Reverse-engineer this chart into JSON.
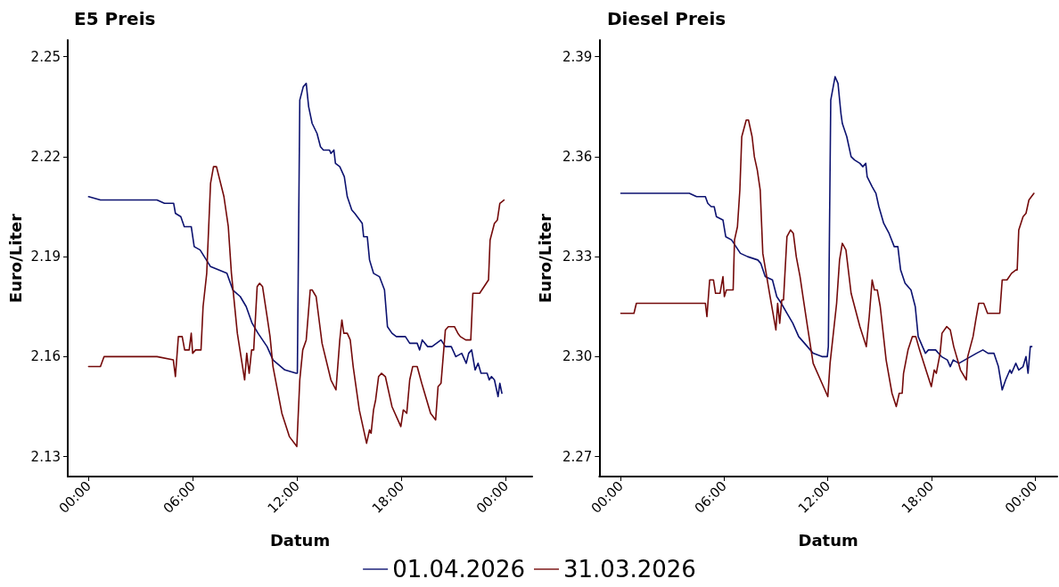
{
  "chart_data": [
    {
      "type": "line",
      "title": "E5 Preis",
      "xlabel": "Datum",
      "ylabel": "Euro/Liter",
      "xlim": [
        -1.2,
        25.5
      ],
      "ylim": [
        2.124,
        2.255
      ],
      "xticks": [
        {
          "value": 0,
          "label": "00:00"
        },
        {
          "value": 6,
          "label": "06:00"
        },
        {
          "value": 12,
          "label": "12:00"
        },
        {
          "value": 18,
          "label": "18:00"
        },
        {
          "value": 24,
          "label": "00:00"
        }
      ],
      "yticks": [
        2.13,
        2.16,
        2.19,
        2.22,
        2.25
      ],
      "grid": false,
      "legend": "bottom",
      "marker": "none",
      "line_style": "solid",
      "series": [
        {
          "name": "01.04.2026",
          "color": "#0c1270",
          "x": [
            0,
            0.68,
            3.93,
            4.36,
            4.89,
            4.99,
            5.3,
            5.5,
            5.9,
            6.07,
            6.41,
            7.01,
            7.95,
            8.29,
            8.72,
            9.06,
            9.4,
            9.74,
            10.26,
            10.6,
            11.28,
            11.93,
            12.0,
            12.14,
            12.34,
            12.51,
            12.65,
            12.85,
            13.13,
            13.33,
            13.5,
            13.85,
            13.93,
            14.1,
            14.19,
            14.44,
            14.7,
            14.87,
            15.13,
            15.3,
            15.73,
            15.81,
            16.02,
            16.15,
            16.38,
            16.72,
            17.01,
            17.18,
            17.44,
            17.69,
            18.21,
            18.46,
            18.89,
            19.03,
            19.18,
            19.49,
            19.74,
            20.26,
            20.51,
            20.85,
            21.11,
            21.45,
            21.71,
            21.85,
            22.02,
            22.22,
            22.39,
            22.56,
            22.91,
            23.03,
            23.16,
            23.33,
            23.54,
            23.64,
            23.76
          ],
          "values": [
            2.208,
            2.207,
            2.207,
            2.206,
            2.206,
            2.203,
            2.202,
            2.199,
            2.199,
            2.193,
            2.192,
            2.187,
            2.185,
            2.18,
            2.178,
            2.175,
            2.17,
            2.167,
            2.163,
            2.159,
            2.156,
            2.155,
            2.155,
            2.237,
            2.241,
            2.242,
            2.235,
            2.23,
            2.227,
            2.223,
            2.222,
            2.222,
            2.221,
            2.222,
            2.218,
            2.217,
            2.214,
            2.208,
            2.204,
            2.203,
            2.2,
            2.196,
            2.196,
            2.189,
            2.185,
            2.184,
            2.18,
            2.169,
            2.167,
            2.166,
            2.166,
            2.164,
            2.164,
            2.162,
            2.165,
            2.163,
            2.163,
            2.165,
            2.163,
            2.163,
            2.16,
            2.161,
            2.158,
            2.161,
            2.162,
            2.156,
            2.158,
            2.155,
            2.155,
            2.153,
            2.154,
            2.153,
            2.148,
            2.152,
            2.149
          ]
        },
        {
          "name": "31.03.2026",
          "color": "#740a0a",
          "x": [
            0,
            0.68,
            0.89,
            3.93,
            4.87,
            4.99,
            5.16,
            5.38,
            5.52,
            5.78,
            5.9,
            5.98,
            6.15,
            6.46,
            6.58,
            6.79,
            7.01,
            7.18,
            7.35,
            7.78,
            8.03,
            8.21,
            8.55,
            8.97,
            9.09,
            9.23,
            9.37,
            9.49,
            9.69,
            9.83,
            10.0,
            10.26,
            10.43,
            10.6,
            11.11,
            11.54,
            11.97,
            12.14,
            12.31,
            12.51,
            12.74,
            12.85,
            13.08,
            13.42,
            13.93,
            14.22,
            14.44,
            14.56,
            14.67,
            14.87,
            15.04,
            15.21,
            15.56,
            15.98,
            16.15,
            16.24,
            16.38,
            16.5,
            16.67,
            16.84,
            17.06,
            17.44,
            17.95,
            18.09,
            18.29,
            18.46,
            18.63,
            18.89,
            19.15,
            19.66,
            19.95,
            20.09,
            20.26,
            20.51,
            20.68,
            21.03,
            21.23,
            21.37,
            21.68,
            21.97,
            22.09,
            22.26,
            22.48,
            22.99,
            23.08,
            23.33,
            23.5,
            23.64,
            23.88
          ],
          "values": [
            2.157,
            2.157,
            2.16,
            2.16,
            2.159,
            2.154,
            2.166,
            2.166,
            2.162,
            2.162,
            2.167,
            2.161,
            2.162,
            2.162,
            2.175,
            2.185,
            2.212,
            2.217,
            2.217,
            2.208,
            2.199,
            2.185,
            2.167,
            2.153,
            2.161,
            2.155,
            2.162,
            2.162,
            2.181,
            2.182,
            2.181,
            2.172,
            2.166,
            2.157,
            2.143,
            2.136,
            2.133,
            2.153,
            2.162,
            2.165,
            2.18,
            2.18,
            2.178,
            2.164,
            2.153,
            2.15,
            2.165,
            2.171,
            2.167,
            2.167,
            2.165,
            2.157,
            2.144,
            2.134,
            2.138,
            2.137,
            2.144,
            2.147,
            2.154,
            2.155,
            2.154,
            2.145,
            2.139,
            2.144,
            2.143,
            2.153,
            2.157,
            2.157,
            2.152,
            2.143,
            2.141,
            2.151,
            2.152,
            2.168,
            2.169,
            2.169,
            2.167,
            2.166,
            2.165,
            2.165,
            2.179,
            2.179,
            2.179,
            2.183,
            2.195,
            2.2,
            2.201,
            2.206,
            2.207
          ]
        }
      ]
    },
    {
      "type": "line",
      "title": "Diesel Preis",
      "xlabel": "Datum",
      "ylabel": "Euro/Liter",
      "xlim": [
        -1.25,
        25.3
      ],
      "ylim": [
        2.264,
        2.395
      ],
      "xticks": [
        {
          "value": 0,
          "label": "00:00"
        },
        {
          "value": 6,
          "label": "06:00"
        },
        {
          "value": 12,
          "label": "12:00"
        },
        {
          "value": 18,
          "label": "18:00"
        },
        {
          "value": 24,
          "label": "00:00"
        }
      ],
      "yticks": [
        2.27,
        {
          "value": 2.3,
          "label": "2.30"
        },
        2.33,
        2.36,
        2.39
      ],
      "grid": false,
      "marker": "none",
      "line_style": "solid",
      "series": [
        {
          "name": "01.04.2026",
          "color": "#0c1270",
          "x": [
            0,
            0.34,
            1.01,
            3.97,
            4.39,
            4.9,
            5.04,
            5.24,
            5.41,
            5.54,
            5.92,
            6.08,
            6.42,
            6.93,
            7.35,
            7.94,
            8.11,
            8.37,
            8.79,
            9.04,
            9.3,
            9.63,
            9.97,
            10.31,
            10.65,
            11.15,
            11.66,
            11.97,
            12.03,
            12.17,
            12.42,
            12.59,
            12.76,
            12.84,
            13.1,
            13.35,
            13.55,
            13.86,
            14.03,
            14.2,
            14.28,
            14.57,
            14.79,
            14.96,
            15.24,
            15.55,
            15.85,
            16.06,
            16.22,
            16.48,
            16.82,
            17.07,
            17.24,
            17.49,
            17.66,
            17.83,
            18.25,
            18.59,
            18.93,
            19.1,
            19.27,
            19.6,
            19.94,
            20.28,
            20.62,
            20.99,
            21.29,
            21.63,
            21.89,
            22.11,
            22.31,
            22.56,
            22.65,
            22.9,
            23.07,
            23.32,
            23.49,
            23.61,
            23.74,
            23.83
          ],
          "values": [
            2.349,
            2.349,
            2.349,
            2.349,
            2.348,
            2.348,
            2.346,
            2.345,
            2.345,
            2.342,
            2.341,
            2.336,
            2.335,
            2.331,
            2.33,
            2.329,
            2.328,
            2.324,
            2.323,
            2.318,
            2.316,
            2.313,
            2.31,
            2.306,
            2.304,
            2.301,
            2.3,
            2.3,
            2.303,
            2.377,
            2.384,
            2.382,
            2.373,
            2.37,
            2.366,
            2.36,
            2.359,
            2.358,
            2.357,
            2.358,
            2.354,
            2.351,
            2.349,
            2.345,
            2.34,
            2.337,
            2.333,
            2.333,
            2.326,
            2.322,
            2.32,
            2.315,
            2.306,
            2.303,
            2.301,
            2.302,
            2.302,
            2.3,
            2.299,
            2.297,
            2.299,
            2.298,
            2.299,
            2.3,
            2.301,
            2.302,
            2.301,
            2.301,
            2.297,
            2.29,
            2.293,
            2.296,
            2.295,
            2.298,
            2.296,
            2.297,
            2.3,
            2.295,
            2.303,
            2.303
          ]
        },
        {
          "name": "31.03.2026",
          "color": "#740a0a",
          "x": [
            0,
            0.34,
            0.76,
            0.9,
            3.89,
            4.06,
            4.9,
            4.99,
            5.15,
            5.37,
            5.49,
            5.75,
            5.92,
            6.0,
            6.12,
            6.51,
            6.59,
            6.76,
            6.9,
            7.01,
            7.27,
            7.4,
            7.61,
            7.74,
            7.91,
            8.08,
            8.23,
            8.62,
            8.99,
            9.09,
            9.21,
            9.33,
            9.43,
            9.63,
            9.84,
            10.0,
            10.17,
            10.39,
            10.56,
            10.82,
            11.15,
            11.66,
            12.0,
            12.13,
            12.3,
            12.51,
            12.68,
            12.84,
            13.05,
            13.35,
            13.86,
            14.23,
            14.4,
            14.57,
            14.7,
            14.87,
            15.04,
            15.38,
            15.72,
            15.97,
            16.14,
            16.31,
            16.39,
            16.65,
            16.9,
            17.1,
            17.32,
            17.75,
            18.0,
            18.17,
            18.29,
            18.51,
            18.62,
            18.89,
            19.1,
            19.3,
            19.69,
            20.03,
            20.11,
            20.42,
            20.58,
            20.75,
            21.04,
            21.26,
            21.55,
            21.97,
            22.11,
            22.39,
            22.65,
            22.9,
            22.98,
            23.07,
            23.32,
            23.49,
            23.66,
            23.95
          ],
          "values": [
            2.313,
            2.313,
            2.313,
            2.316,
            2.316,
            2.316,
            2.316,
            2.312,
            2.323,
            2.323,
            2.319,
            2.319,
            2.324,
            2.318,
            2.32,
            2.32,
            2.335,
            2.339,
            2.35,
            2.366,
            2.371,
            2.371,
            2.366,
            2.36,
            2.356,
            2.35,
            2.331,
            2.319,
            2.308,
            2.316,
            2.31,
            2.317,
            2.317,
            2.336,
            2.338,
            2.337,
            2.33,
            2.324,
            2.318,
            2.309,
            2.298,
            2.292,
            2.288,
            2.298,
            2.306,
            2.316,
            2.329,
            2.334,
            2.332,
            2.319,
            2.309,
            2.303,
            2.312,
            2.323,
            2.32,
            2.32,
            2.315,
            2.299,
            2.289,
            2.285,
            2.289,
            2.289,
            2.295,
            2.302,
            2.306,
            2.306,
            2.302,
            2.295,
            2.291,
            2.296,
            2.295,
            2.301,
            2.307,
            2.309,
            2.308,
            2.303,
            2.296,
            2.293,
            2.3,
            2.306,
            2.311,
            2.316,
            2.316,
            2.313,
            2.313,
            2.313,
            2.323,
            2.323,
            2.325,
            2.326,
            2.326,
            2.338,
            2.342,
            2.343,
            2.347,
            2.349
          ]
        }
      ]
    }
  ]
}
